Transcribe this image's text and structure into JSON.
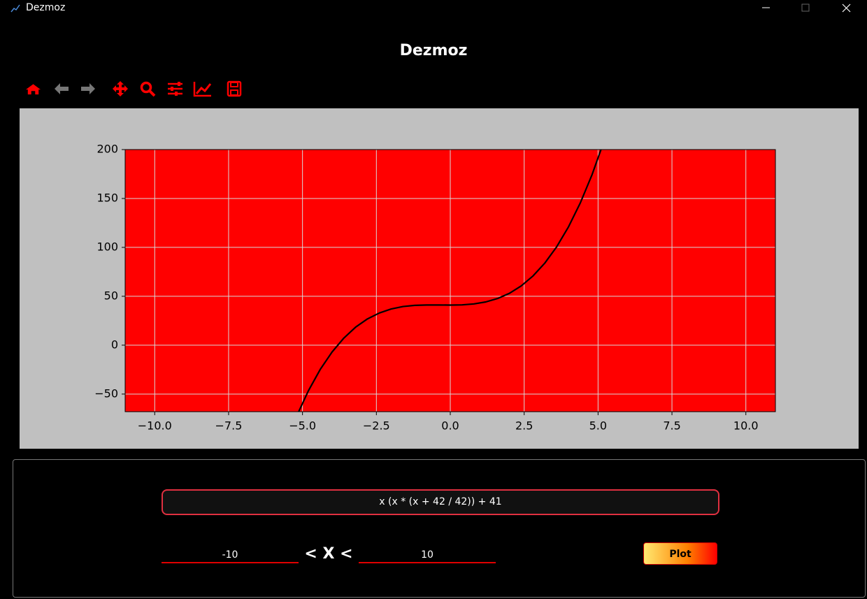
{
  "window": {
    "title": "Dezmoz"
  },
  "header": {
    "title": "Dezmoz"
  },
  "chart_data": {
    "type": "line",
    "x": [
      -5.2,
      -4.8,
      -4.4,
      -4,
      -3.6,
      -3.2,
      -2.8,
      -2.4,
      -2,
      -1.6,
      -1.2,
      -0.8,
      -0.4,
      0,
      0.4,
      0.8,
      1.2,
      1.6,
      2,
      2.4,
      2.8,
      3.2,
      3.6,
      4,
      4.4,
      4.8,
      5.2
    ],
    "series": [
      {
        "color": "#000000",
        "values": [
          -72.6,
          -46.6,
          -24.8,
          -7,
          7.3,
          18.5,
          26.9,
          32.9,
          37,
          39.5,
          40.7,
          41.1,
          41.1,
          41,
          41.2,
          42.2,
          44.2,
          47.7,
          53,
          60.6,
          70.8,
          84,
          100.6,
          121,
          145.5,
          174.6,
          208.6
        ]
      }
    ],
    "xlim": [
      -11,
      11
    ],
    "ylim": [
      -68,
      200
    ],
    "xticks": [
      {
        "value": -10,
        "label": "−10.0"
      },
      {
        "value": -7.5,
        "label": "−7.5"
      },
      {
        "value": -5,
        "label": "−5.0"
      },
      {
        "value": -2.5,
        "label": "−2.5"
      },
      {
        "value": 0,
        "label": "0.0"
      },
      2.5,
      {
        "value": 5,
        "label": "5.0"
      },
      7.5,
      {
        "value": 10,
        "label": "10.0"
      }
    ],
    "yticks": [
      {
        "value": -50,
        "label": "−50"
      },
      0,
      50,
      100,
      150,
      200
    ],
    "grid": true,
    "background": "#ff0000",
    "figure_background": "#c0c0c0"
  },
  "controls": {
    "expression": "x (x * (x + 42 / 42)) + 41",
    "x_min": -10,
    "x_operator": "< X <",
    "x_max": 10,
    "plot_button": "Plot"
  }
}
